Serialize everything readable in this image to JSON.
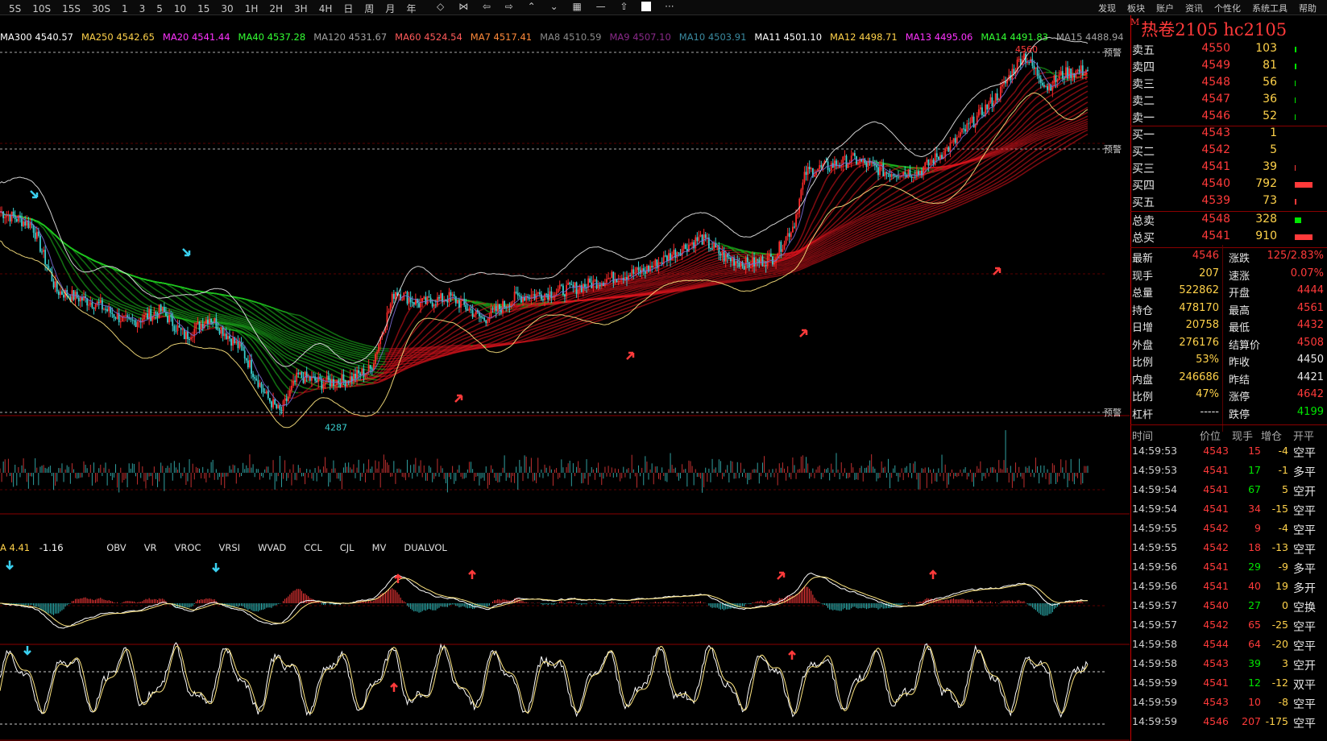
{
  "toolbar": {
    "periods": [
      "5S",
      "10S",
      "15S",
      "30S",
      "1",
      "3",
      "5",
      "10",
      "15",
      "30",
      "1H",
      "2H",
      "3H",
      "4H",
      "日",
      "周",
      "月",
      "年"
    ],
    "menu": [
      "发现",
      "板块",
      "账户",
      "资讯",
      "个性化",
      "系统工具",
      "帮助"
    ]
  },
  "ma_legend": [
    {
      "label": "MA300 4540.57",
      "color": "#ffffff"
    },
    {
      "label": "MA250 4542.65",
      "color": "#ffd24a"
    },
    {
      "label": "MA20 4541.44",
      "color": "#ff33ff"
    },
    {
      "label": "MA40 4537.28",
      "color": "#33ff33"
    },
    {
      "label": "MA120 4531.67",
      "color": "#a0a0a0"
    },
    {
      "label": "MA60 4524.54",
      "color": "#ff5a5a"
    },
    {
      "label": "MA7 4517.41",
      "color": "#ff8a3a"
    },
    {
      "label": "MA8 4510.59",
      "color": "#8a8a8a"
    },
    {
      "label": "MA9 4507.10",
      "color": "#8a2a8a"
    },
    {
      "label": "MA10 4503.91",
      "color": "#3a8aa0"
    },
    {
      "label": "MA11 4501.10",
      "color": "#ffffff"
    },
    {
      "label": "MA12 4498.71",
      "color": "#ffd24a"
    },
    {
      "label": "MA13 4495.06",
      "color": "#ff33ff"
    },
    {
      "label": "MA14 4491.83",
      "color": "#33ff33"
    },
    {
      "label": "MA15 4488.94",
      "color": "#a0a0a0"
    }
  ],
  "main_chart": {
    "alert_label": "预警",
    "high_label": "4560",
    "low_label": "4287"
  },
  "indicator_legend": {
    "value1": "A 4.41",
    "value2": "-1.16",
    "tabs": [
      "OBV",
      "VR",
      "VROC",
      "VRSI",
      "WVAD",
      "CCL",
      "CJL",
      "MV",
      "DUALVOL"
    ]
  },
  "side": {
    "title_mark": "M",
    "title": "热卷2105  hc2105",
    "sell": [
      {
        "label": "卖五",
        "price": "4550",
        "vol": "103",
        "bar": 2
      },
      {
        "label": "卖四",
        "price": "4549",
        "vol": "81",
        "bar": 2
      },
      {
        "label": "卖三",
        "price": "4548",
        "vol": "56",
        "bar": 1
      },
      {
        "label": "卖二",
        "price": "4547",
        "vol": "36",
        "bar": 1
      },
      {
        "label": "卖一",
        "price": "4546",
        "vol": "52",
        "bar": 1
      }
    ],
    "buy": [
      {
        "label": "买一",
        "price": "4543",
        "vol": "1",
        "bar": 0
      },
      {
        "label": "买二",
        "price": "4542",
        "vol": "5",
        "bar": 0
      },
      {
        "label": "买三",
        "price": "4541",
        "vol": "39",
        "bar": 1
      },
      {
        "label": "买四",
        "price": "4540",
        "vol": "792",
        "bar": 22
      },
      {
        "label": "买五",
        "price": "4539",
        "vol": "73",
        "bar": 2
      }
    ],
    "total_sell": {
      "label": "总卖",
      "price": "4548",
      "vol": "328"
    },
    "total_buy": {
      "label": "总买",
      "price": "4541",
      "vol": "910"
    },
    "stats": [
      {
        "l1": "最新",
        "v1": "4546",
        "c1": "red",
        "l2": "涨跌",
        "v2": "125/2.83%",
        "c2": "red"
      },
      {
        "l1": "现手",
        "v1": "207",
        "c1": "yel",
        "l2": "速涨",
        "v2": "0.07%",
        "c2": "red"
      },
      {
        "l1": "总量",
        "v1": "522862",
        "c1": "yel",
        "l2": "开盘",
        "v2": "4444",
        "c2": "red"
      },
      {
        "l1": "持仓",
        "v1": "478170",
        "c1": "yel",
        "l2": "最高",
        "v2": "4561",
        "c2": "red"
      },
      {
        "l1": "日增",
        "v1": "20758",
        "c1": "yel",
        "l2": "最低",
        "v2": "4432",
        "c2": "red"
      },
      {
        "l1": "外盘",
        "v1": "276176",
        "c1": "yel",
        "l2": "结算价",
        "v2": "4508",
        "c2": "red"
      },
      {
        "l1": "比例",
        "v1": "53%",
        "c1": "yel",
        "l2": "昨收",
        "v2": "4450",
        "c2": "wht"
      },
      {
        "l1": "内盘",
        "v1": "246686",
        "c1": "yel",
        "l2": "昨结",
        "v2": "4421",
        "c2": "wht"
      },
      {
        "l1": "比例",
        "v1": "47%",
        "c1": "yel",
        "l2": "涨停",
        "v2": "4642",
        "c2": "red"
      },
      {
        "l1": "杠杆",
        "v1": "-----",
        "c1": "wht",
        "l2": "跌停",
        "v2": "4199",
        "c2": "grn"
      }
    ],
    "ticks_header": [
      "时间",
      "价位",
      "现手",
      "增仓",
      "开平"
    ],
    "ticks": [
      {
        "t": "14:59:53",
        "p": "4543",
        "q": "15",
        "qc": "red",
        "d": "-4",
        "k": "空平"
      },
      {
        "t": "14:59:53",
        "p": "4541",
        "q": "17",
        "qc": "grn",
        "d": "-1",
        "k": "多平"
      },
      {
        "t": "14:59:54",
        "p": "4541",
        "q": "67",
        "qc": "grn",
        "d": "5",
        "k": "空开"
      },
      {
        "t": "14:59:54",
        "p": "4541",
        "q": "34",
        "qc": "red",
        "d": "-15",
        "k": "空平"
      },
      {
        "t": "14:59:55",
        "p": "4542",
        "q": "9",
        "qc": "red",
        "d": "-4",
        "k": "空平"
      },
      {
        "t": "14:59:55",
        "p": "4542",
        "q": "18",
        "qc": "red",
        "d": "-13",
        "k": "空平"
      },
      {
        "t": "14:59:56",
        "p": "4541",
        "q": "29",
        "qc": "grn",
        "d": "-9",
        "k": "多平"
      },
      {
        "t": "14:59:56",
        "p": "4541",
        "q": "40",
        "qc": "red",
        "d": "19",
        "k": "多开"
      },
      {
        "t": "14:59:57",
        "p": "4540",
        "q": "27",
        "qc": "grn",
        "d": "0",
        "k": "空换"
      },
      {
        "t": "14:59:57",
        "p": "4542",
        "q": "65",
        "qc": "red",
        "d": "-25",
        "k": "空平"
      },
      {
        "t": "14:59:58",
        "p": "4544",
        "q": "64",
        "qc": "red",
        "d": "-20",
        "k": "空平"
      },
      {
        "t": "14:59:58",
        "p": "4543",
        "q": "39",
        "qc": "grn",
        "d": "3",
        "k": "空开"
      },
      {
        "t": "14:59:59",
        "p": "4541",
        "q": "12",
        "qc": "grn",
        "d": "-12",
        "k": "双平"
      },
      {
        "t": "14:59:59",
        "p": "4543",
        "q": "10",
        "qc": "red",
        "d": "-8",
        "k": "空平"
      },
      {
        "t": "14:59:59",
        "p": "4546",
        "q": "207",
        "qc": "red",
        "d": "-175",
        "k": "空平"
      }
    ]
  }
}
